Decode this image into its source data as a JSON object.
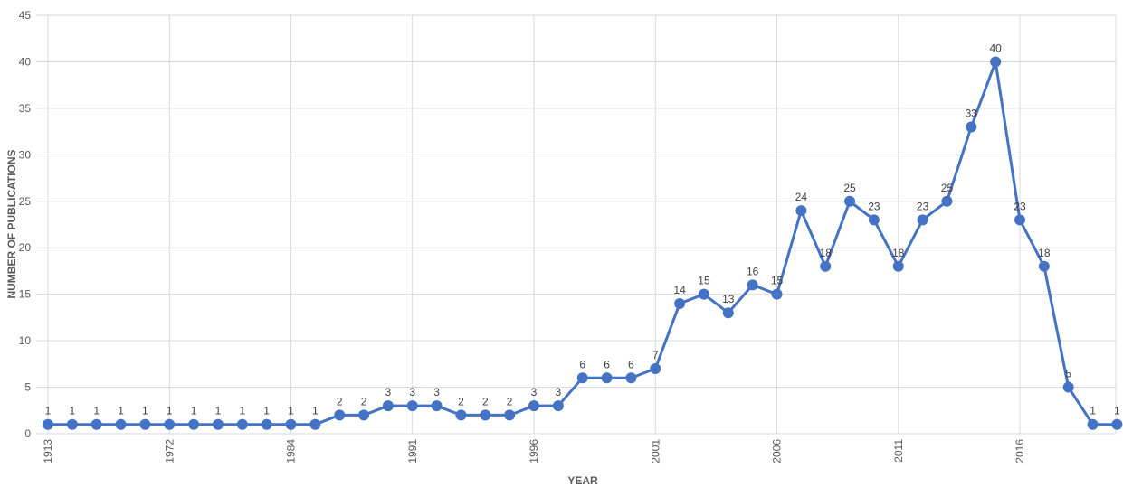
{
  "chart_data": {
    "type": "line",
    "title": "",
    "xlabel": "YEAR",
    "ylabel": "NUMBER OF PUBLICATIONS",
    "ylim": [
      0,
      45
    ],
    "yticks": [
      0,
      5,
      10,
      15,
      20,
      25,
      30,
      35,
      40,
      45
    ],
    "grid": true,
    "x_tick_labels": [
      {
        "index": 0,
        "label": "1913"
      },
      {
        "index": 5,
        "label": "1972"
      },
      {
        "index": 10,
        "label": "1984"
      },
      {
        "index": 15,
        "label": "1991"
      },
      {
        "index": 20,
        "label": "1996"
      },
      {
        "index": 25,
        "label": "2001"
      },
      {
        "index": 30,
        "label": "2006"
      },
      {
        "index": 35,
        "label": "2011"
      },
      {
        "index": 40,
        "label": "2016"
      }
    ],
    "series": [
      {
        "values": [
          1,
          1,
          1,
          1,
          1,
          1,
          1,
          1,
          1,
          1,
          1,
          1,
          2,
          2,
          3,
          3,
          3,
          2,
          2,
          2,
          3,
          3,
          6,
          6,
          6,
          7,
          14,
          15,
          13,
          16,
          15,
          24,
          18,
          25,
          23,
          18,
          23,
          25,
          33,
          40,
          23,
          18,
          5,
          1,
          1
        ],
        "color": "#4472c4"
      }
    ]
  }
}
